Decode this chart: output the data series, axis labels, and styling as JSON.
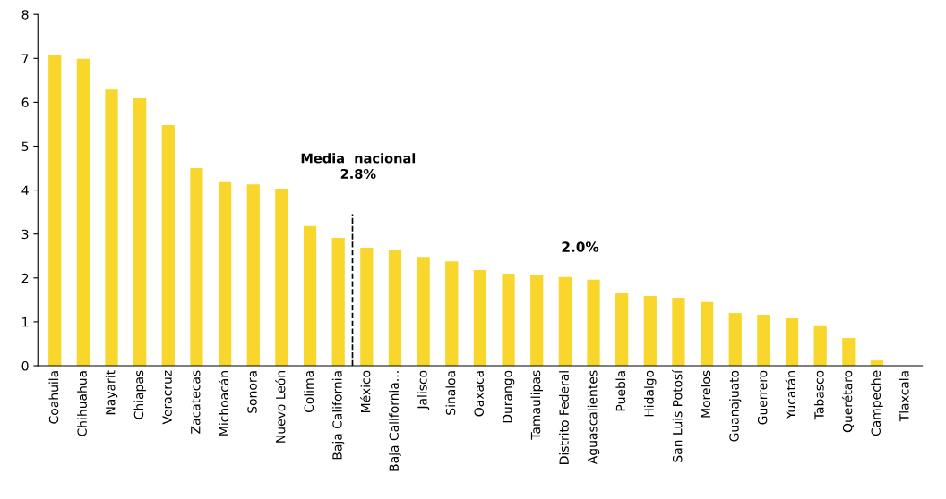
{
  "chart_data": {
    "type": "bar",
    "categories": [
      "Coahuila",
      "Chihuahua",
      "Nayarit",
      "Chiapas",
      "Veracruz",
      "Zacatecas",
      "Michoacán",
      "Sonora",
      "Nuevo León",
      "Colima",
      "Baja California",
      "México",
      "Baja California...",
      "Jalisco",
      "Sinaloa",
      "Oaxaca",
      "Durango",
      "Tamaulipas",
      "Distrito Federal",
      "Aguascalientes",
      "Puebla",
      "Hidalgo",
      "San Luis Potosí",
      "Morelos",
      "Guanajuato",
      "Guerrero",
      "Yucatán",
      "Tabasco",
      "Querétaro",
      "Campeche",
      "Tlaxcala"
    ],
    "values": [
      7.07,
      6.99,
      6.29,
      6.09,
      5.48,
      4.5,
      4.2,
      4.13,
      4.03,
      3.18,
      2.91,
      2.69,
      2.65,
      2.48,
      2.38,
      2.18,
      2.1,
      2.06,
      2.02,
      1.96,
      1.65,
      1.59,
      1.55,
      1.45,
      1.2,
      1.16,
      1.08,
      0.92,
      0.63,
      0.12,
      0
    ],
    "color": "#f9d62b",
    "ylim": [
      0,
      8
    ],
    "yticks": [
      0,
      1,
      2,
      3,
      4,
      5,
      6,
      7,
      8
    ],
    "grid": false,
    "legend": false,
    "annotations": [
      "Media  nacional\n2.8%",
      {
        "text": "2.0%",
        "x": "Distrito Federal",
        "y": 2.02
      }
    ]
  }
}
